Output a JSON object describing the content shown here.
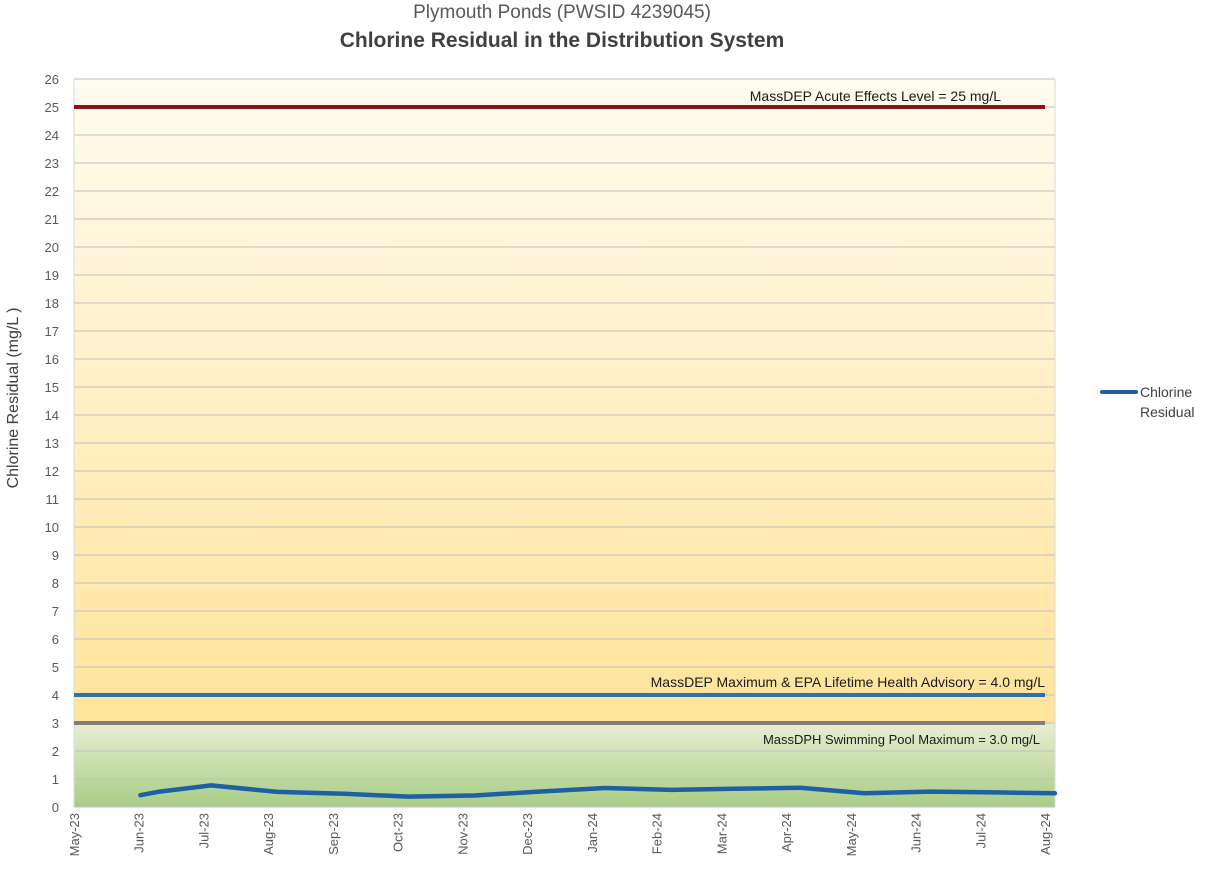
{
  "chart_data": {
    "type": "line",
    "subtitle": "Plymouth Ponds (PWSID 4239045)",
    "title": "Chlorine Residual in the Distribution System",
    "xlabel": "",
    "ylabel": "Chlorine Residual (mg/L )",
    "ylim": [
      0,
      26
    ],
    "yticks": [
      0,
      1,
      2,
      3,
      4,
      5,
      6,
      7,
      8,
      9,
      10,
      11,
      12,
      13,
      14,
      15,
      16,
      17,
      18,
      19,
      20,
      21,
      22,
      23,
      24,
      25,
      26
    ],
    "xticks": [
      "May-23",
      "Jun-23",
      "Jul-23",
      "Aug-23",
      "Sep-23",
      "Oct-23",
      "Nov-23",
      "Dec-23",
      "Jan-24",
      "Feb-24",
      "Mar-24",
      "Apr-24",
      "May-24",
      "Jun-24",
      "Jul-24",
      "Aug-24"
    ],
    "grid": true,
    "legend_position": "right",
    "series": [
      {
        "name": "Chlorine Residual",
        "color": "#1f5fa3",
        "points": [
          {
            "x": "2023-06-01",
            "y": 0.42
          },
          {
            "x": "2023-06-10",
            "y": 0.55
          },
          {
            "x": "2023-07-04",
            "y": 0.77
          },
          {
            "x": "2023-08-04",
            "y": 0.54
          },
          {
            "x": "2023-09-04",
            "y": 0.47
          },
          {
            "x": "2023-10-04",
            "y": 0.37
          },
          {
            "x": "2023-11-04",
            "y": 0.41
          },
          {
            "x": "2023-12-04",
            "y": 0.55
          },
          {
            "x": "2024-01-04",
            "y": 0.68
          },
          {
            "x": "2024-02-04",
            "y": 0.61
          },
          {
            "x": "2024-03-04",
            "y": 0.65
          },
          {
            "x": "2024-04-04",
            "y": 0.69
          },
          {
            "x": "2024-05-04",
            "y": 0.49
          },
          {
            "x": "2024-06-04",
            "y": 0.55
          },
          {
            "x": "2024-07-04",
            "y": 0.52
          },
          {
            "x": "2024-08-01",
            "y": 0.49
          }
        ]
      }
    ],
    "reference_lines": [
      {
        "value": 25,
        "label": "MassDEP Acute Effects Level = 25 mg/L",
        "color": "#8b1212"
      },
      {
        "value": 4,
        "label": "MassDEP Maximum & EPA Lifetime Health Advisory = 4.0 mg/L",
        "color": "#2f6fb5"
      },
      {
        "value": 3,
        "label": "MassDPH Swimming Pool Maximum = 3.0 mg/L",
        "color": "#7f7f7f"
      }
    ]
  }
}
